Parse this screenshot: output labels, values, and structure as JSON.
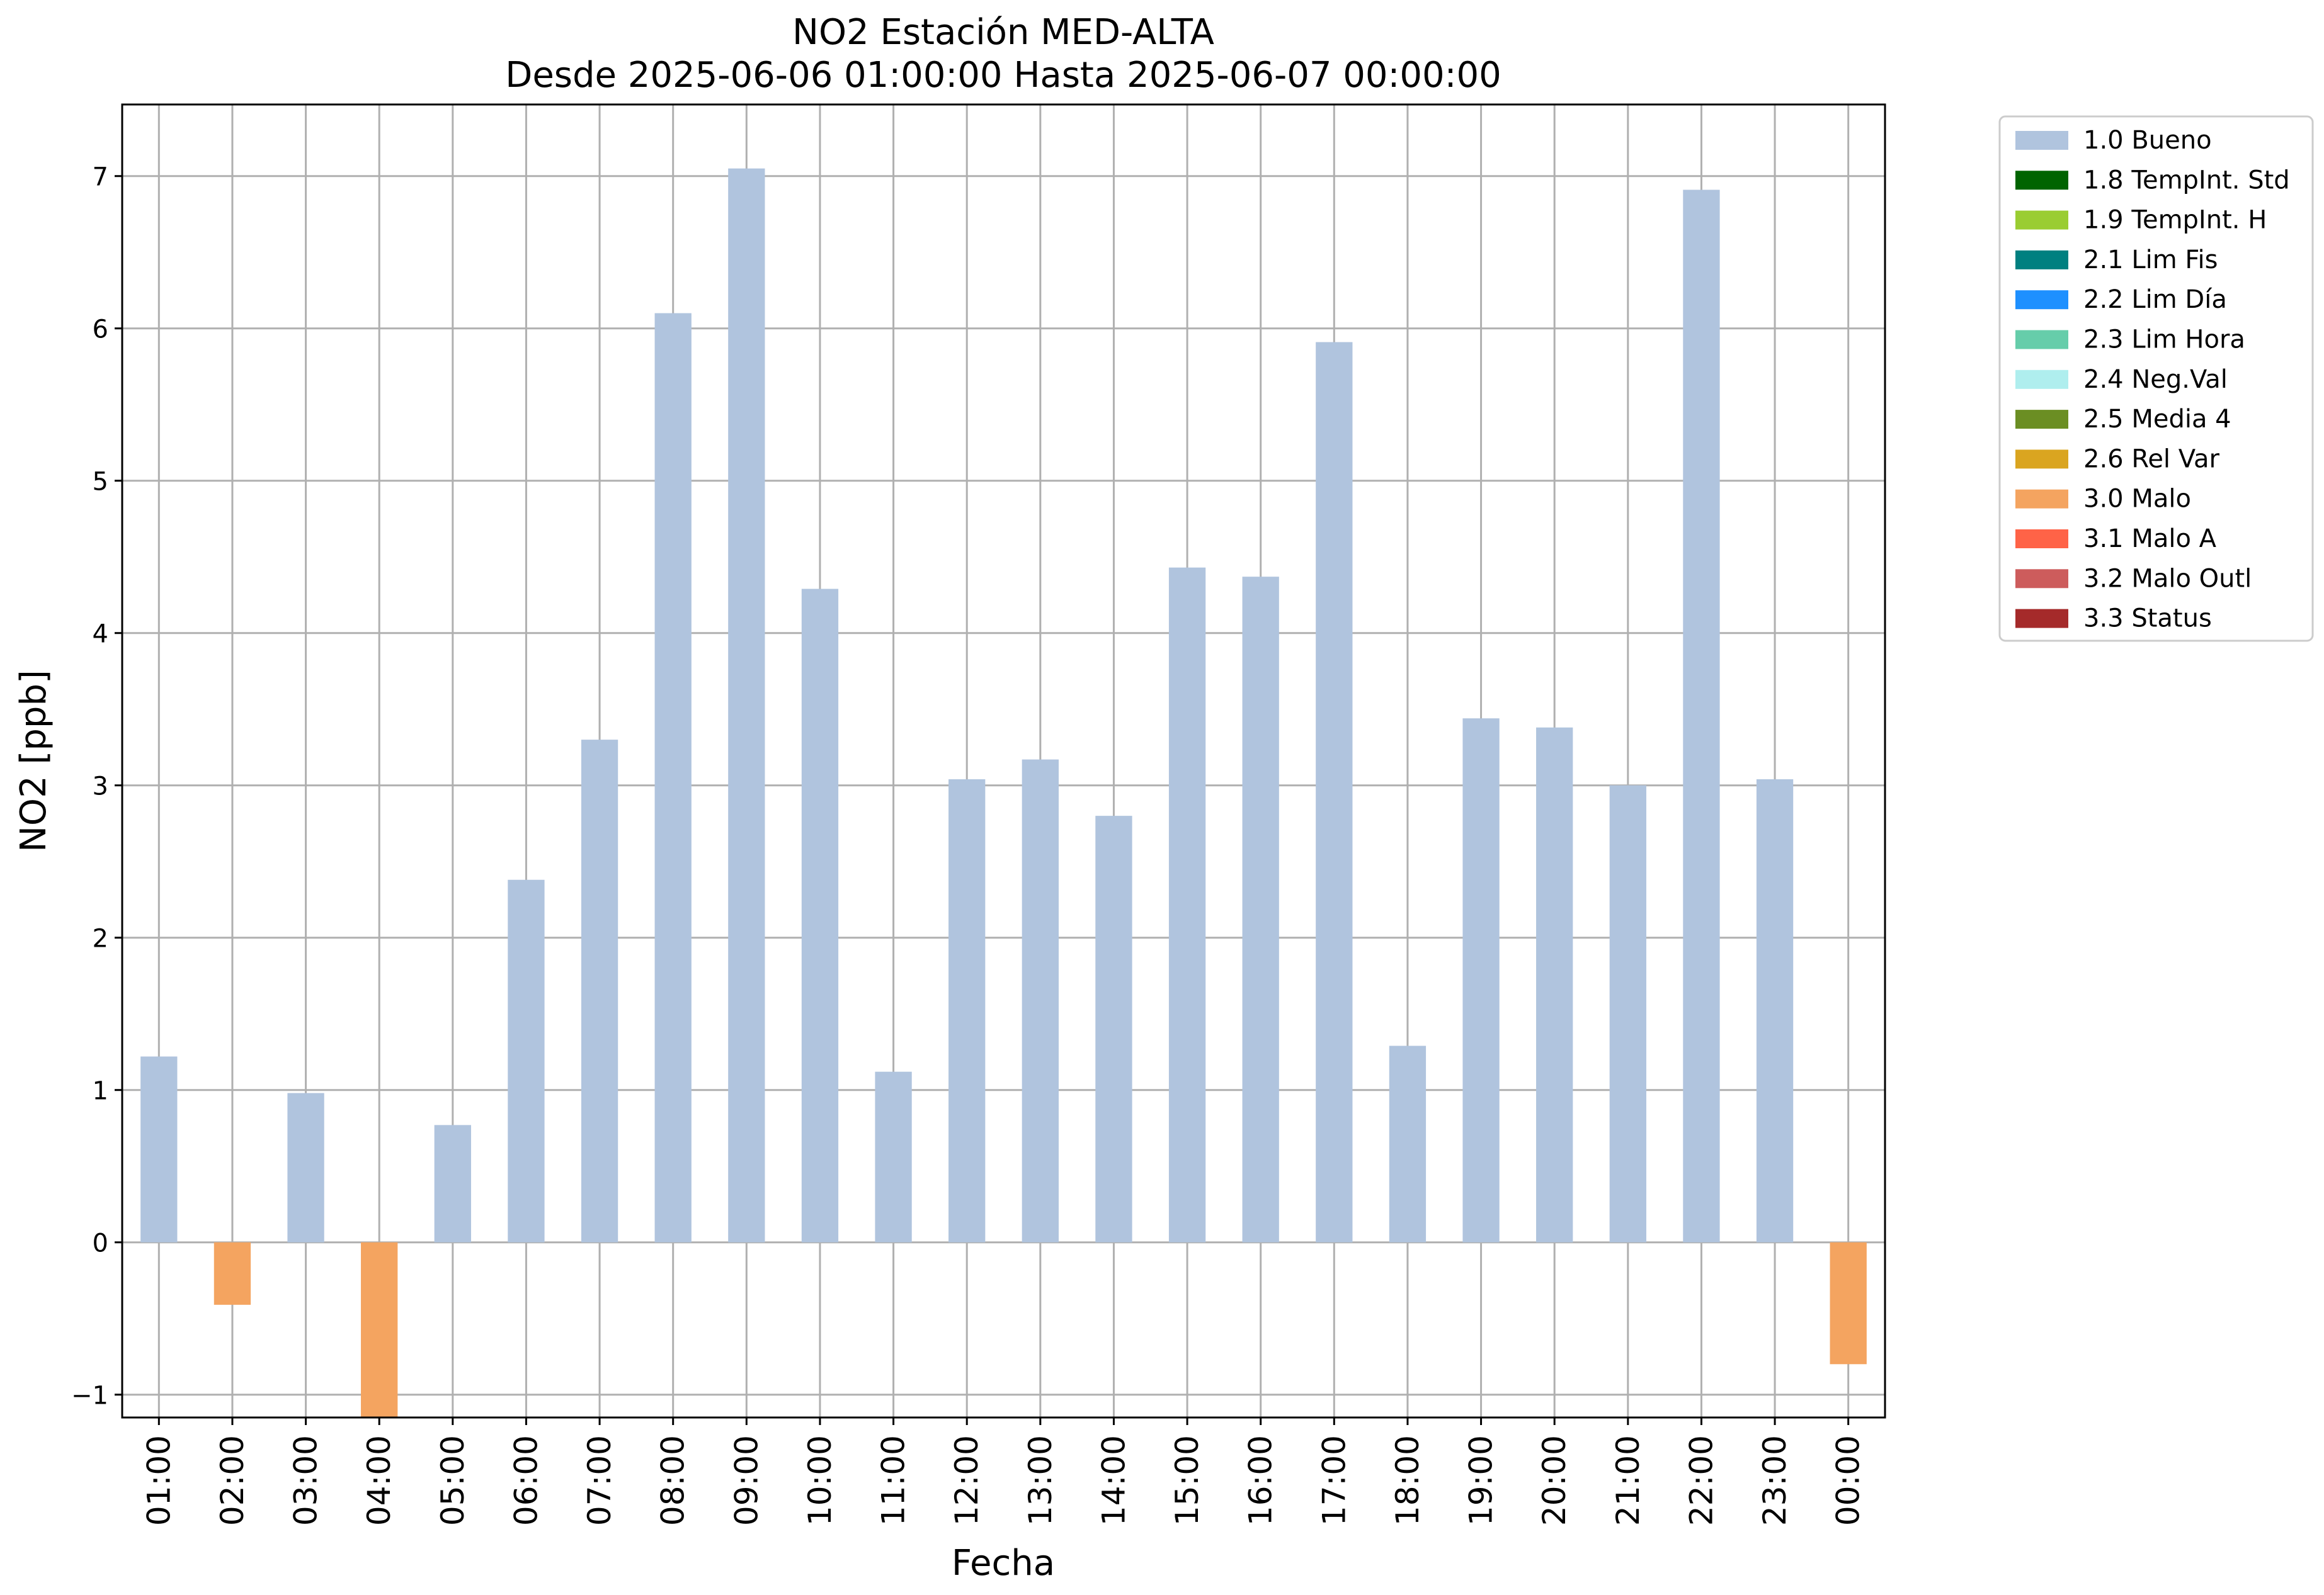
{
  "chart_data": {
    "type": "bar",
    "title": "NO2 Estación MED-ALTA",
    "subtitle": "Desde 2025-06-06 01:00:00 Hasta 2025-06-07 00:00:00",
    "xlabel": "Fecha",
    "ylabel": "NO2 [ppb]",
    "ylim": [
      -1.15,
      7.47
    ],
    "yticks": [
      -1,
      0,
      1,
      2,
      3,
      4,
      5,
      6,
      7
    ],
    "ytick_labels": [
      "−1",
      "0",
      "1",
      "2",
      "3",
      "4",
      "5",
      "6",
      "7"
    ],
    "grid": true,
    "legend_position": "outside-top-right",
    "categories": [
      "01:00",
      "02:00",
      "03:00",
      "04:00",
      "05:00",
      "06:00",
      "07:00",
      "08:00",
      "09:00",
      "10:00",
      "11:00",
      "12:00",
      "13:00",
      "14:00",
      "15:00",
      "16:00",
      "17:00",
      "18:00",
      "19:00",
      "20:00",
      "21:00",
      "22:00",
      "23:00",
      "00:00"
    ],
    "values": [
      1.22,
      -0.41,
      0.98,
      -1.2,
      0.77,
      2.38,
      3.3,
      6.1,
      7.05,
      4.29,
      1.12,
      3.04,
      3.17,
      2.8,
      4.43,
      4.37,
      5.91,
      1.29,
      3.44,
      3.38,
      3.0,
      6.91,
      3.04,
      -0.8
    ],
    "flags": [
      "1.0",
      "3.0",
      "1.0",
      "3.0",
      "1.0",
      "1.0",
      "1.0",
      "1.0",
      "1.0",
      "1.0",
      "1.0",
      "1.0",
      "1.0",
      "1.0",
      "1.0",
      "1.0",
      "1.0",
      "1.0",
      "1.0",
      "1.0",
      "1.0",
      "1.0",
      "1.0",
      "3.0"
    ],
    "legend": [
      {
        "code": "1.0",
        "label": "1.0 Bueno",
        "color": "#b0c4de"
      },
      {
        "code": "1.8",
        "label": "1.8 TempInt. Std",
        "color": "#006400"
      },
      {
        "code": "1.9",
        "label": "1.9 TempInt. H",
        "color": "#9acd32"
      },
      {
        "code": "2.1",
        "label": "2.1 Lim Fis",
        "color": "#008080"
      },
      {
        "code": "2.2",
        "label": "2.2 Lim Día",
        "color": "#1e90ff"
      },
      {
        "code": "2.3",
        "label": "2.3 Lim Hora",
        "color": "#66cdaa"
      },
      {
        "code": "2.4",
        "label": "2.4 Neg.Val",
        "color": "#afeeee"
      },
      {
        "code": "2.5",
        "label": "2.5 Media 4",
        "color": "#6b8e23"
      },
      {
        "code": "2.6",
        "label": "2.6 Rel Var",
        "color": "#daa520"
      },
      {
        "code": "3.0",
        "label": "3.0 Malo",
        "color": "#f4a460"
      },
      {
        "code": "3.1",
        "label": "3.1 Malo A",
        "color": "#ff6347"
      },
      {
        "code": "3.2",
        "label": "3.2 Malo Outl",
        "color": "#cd5c5c"
      },
      {
        "code": "3.3",
        "label": "3.3 Status",
        "color": "#a52a2a"
      }
    ]
  }
}
